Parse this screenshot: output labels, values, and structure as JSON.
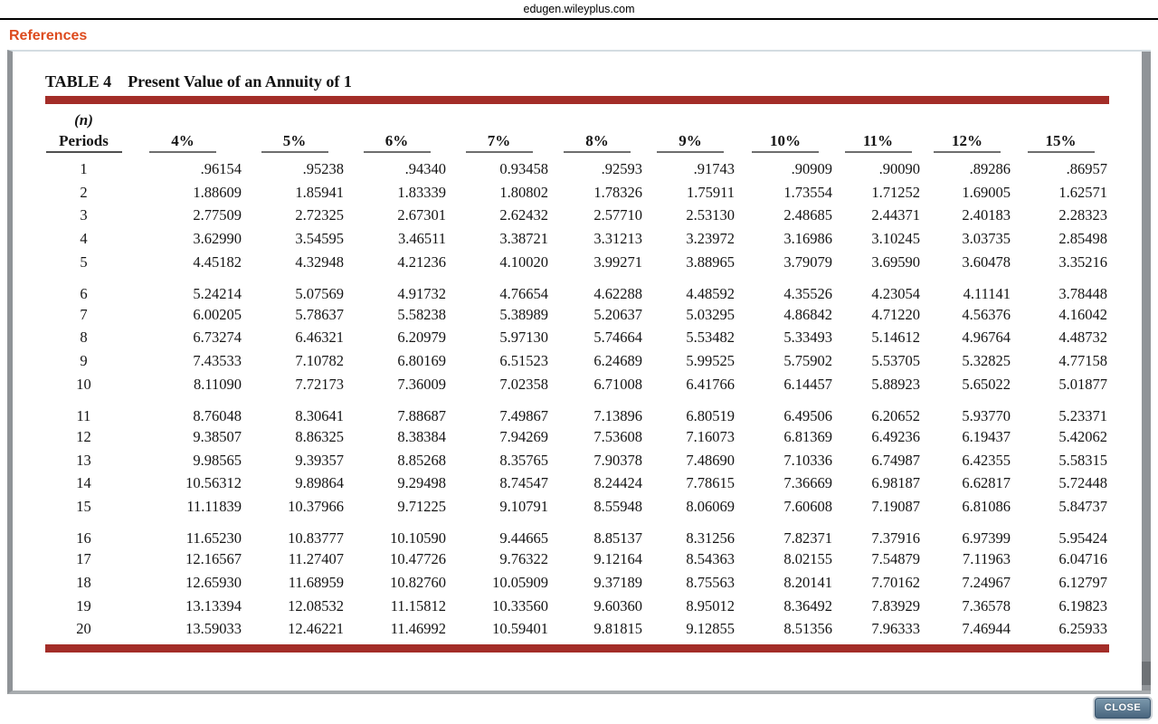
{
  "browser": {
    "site_label": "edugen.wileyplus.com"
  },
  "references": {
    "label": "References"
  },
  "table": {
    "title_label": "TABLE 4",
    "title_text": "Present Value of an Annuity of 1",
    "periods_header_top": "(n)",
    "periods_header_bottom": "Periods",
    "columns": [
      "4%",
      "5%",
      "6%",
      "7%",
      "8%",
      "9%",
      "10%",
      "11%",
      "12%",
      "15%"
    ],
    "row_groups": [
      [
        {
          "period": "1",
          "values": [
            ".96154",
            ".95238",
            ".94340",
            "0.93458",
            ".92593",
            ".91743",
            ".90909",
            ".90090",
            ".89286",
            ".86957"
          ]
        },
        {
          "period": "2",
          "values": [
            "1.88609",
            "1.85941",
            "1.83339",
            "1.80802",
            "1.78326",
            "1.75911",
            "1.73554",
            "1.71252",
            "1.69005",
            "1.62571"
          ]
        },
        {
          "period": "3",
          "values": [
            "2.77509",
            "2.72325",
            "2.67301",
            "2.62432",
            "2.57710",
            "2.53130",
            "2.48685",
            "2.44371",
            "2.40183",
            "2.28323"
          ]
        },
        {
          "period": "4",
          "values": [
            "3.62990",
            "3.54595",
            "3.46511",
            "3.38721",
            "3.31213",
            "3.23972",
            "3.16986",
            "3.10245",
            "3.03735",
            "2.85498"
          ]
        },
        {
          "period": "5",
          "values": [
            "4.45182",
            "4.32948",
            "4.21236",
            "4.10020",
            "3.99271",
            "3.88965",
            "3.79079",
            "3.69590",
            "3.60478",
            "3.35216"
          ]
        }
      ],
      [
        {
          "period": "6",
          "values": [
            "5.24214",
            "5.07569",
            "4.91732",
            "4.76654",
            "4.62288",
            "4.48592",
            "4.35526",
            "4.23054",
            "4.11141",
            "3.78448"
          ]
        },
        {
          "period": "7",
          "values": [
            "6.00205",
            "5.78637",
            "5.58238",
            "5.38989",
            "5.20637",
            "5.03295",
            "4.86842",
            "4.71220",
            "4.56376",
            "4.16042"
          ]
        },
        {
          "period": "8",
          "values": [
            "6.73274",
            "6.46321",
            "6.20979",
            "5.97130",
            "5.74664",
            "5.53482",
            "5.33493",
            "5.14612",
            "4.96764",
            "4.48732"
          ]
        },
        {
          "period": "9",
          "values": [
            "7.43533",
            "7.10782",
            "6.80169",
            "6.51523",
            "6.24689",
            "5.99525",
            "5.75902",
            "5.53705",
            "5.32825",
            "4.77158"
          ]
        },
        {
          "period": "10",
          "values": [
            "8.11090",
            "7.72173",
            "7.36009",
            "7.02358",
            "6.71008",
            "6.41766",
            "6.14457",
            "5.88923",
            "5.65022",
            "5.01877"
          ]
        }
      ],
      [
        {
          "period": "11",
          "values": [
            "8.76048",
            "8.30641",
            "7.88687",
            "7.49867",
            "7.13896",
            "6.80519",
            "6.49506",
            "6.20652",
            "5.93770",
            "5.23371"
          ]
        },
        {
          "period": "12",
          "values": [
            "9.38507",
            "8.86325",
            "8.38384",
            "7.94269",
            "7.53608",
            "7.16073",
            "6.81369",
            "6.49236",
            "6.19437",
            "5.42062"
          ]
        },
        {
          "period": "13",
          "values": [
            "9.98565",
            "9.39357",
            "8.85268",
            "8.35765",
            "7.90378",
            "7.48690",
            "7.10336",
            "6.74987",
            "6.42355",
            "5.58315"
          ]
        },
        {
          "period": "14",
          "values": [
            "10.56312",
            "9.89864",
            "9.29498",
            "8.74547",
            "8.24424",
            "7.78615",
            "7.36669",
            "6.98187",
            "6.62817",
            "5.72448"
          ]
        },
        {
          "period": "15",
          "values": [
            "11.11839",
            "10.37966",
            "9.71225",
            "9.10791",
            "8.55948",
            "8.06069",
            "7.60608",
            "7.19087",
            "6.81086",
            "5.84737"
          ]
        }
      ],
      [
        {
          "period": "16",
          "values": [
            "11.65230",
            "10.83777",
            "10.10590",
            "9.44665",
            "8.85137",
            "8.31256",
            "7.82371",
            "7.37916",
            "6.97399",
            "5.95424"
          ]
        },
        {
          "period": "17",
          "values": [
            "12.16567",
            "11.27407",
            "10.47726",
            "9.76322",
            "9.12164",
            "8.54363",
            "8.02155",
            "7.54879",
            "7.11963",
            "6.04716"
          ]
        },
        {
          "period": "18",
          "values": [
            "12.65930",
            "11.68959",
            "10.82760",
            "10.05909",
            "9.37189",
            "8.75563",
            "8.20141",
            "7.70162",
            "7.24967",
            "6.12797"
          ]
        },
        {
          "period": "19",
          "values": [
            "13.13394",
            "12.08532",
            "11.15812",
            "10.33560",
            "9.60360",
            "8.95012",
            "8.36492",
            "7.83929",
            "7.36578",
            "6.19823"
          ]
        },
        {
          "period": "20",
          "values": [
            "13.59033",
            "12.46221",
            "11.46992",
            "10.59401",
            "9.81815",
            "9.12855",
            "8.51356",
            "7.96333",
            "7.46944",
            "6.25933"
          ]
        }
      ]
    ]
  },
  "close_button": {
    "label": "CLOSE"
  },
  "colors": {
    "rule_red": "#A32D28",
    "references_orange": "#DD4B1E",
    "frame_gray": "#8F9397",
    "close_top": "#7B98AC",
    "close_bottom": "#48657E"
  }
}
